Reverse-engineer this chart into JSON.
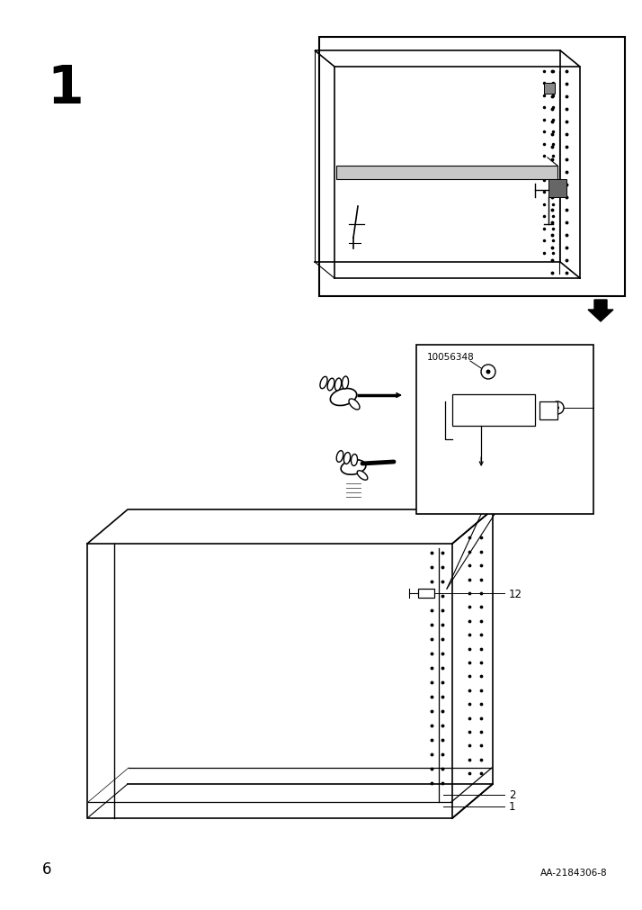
{
  "page_number": "6",
  "doc_id": "AA-2184306-8",
  "step_number": "1",
  "bg_color": "#ffffff",
  "line_color": "#000000",
  "part_label_12": "12",
  "part_label_2": "2",
  "part_label_1": "1",
  "part_code": "10056348",
  "figsize": [
    7.14,
    10.12
  ],
  "dpi": 100
}
